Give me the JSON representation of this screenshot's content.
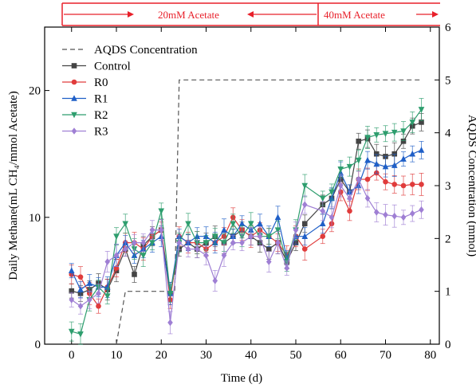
{
  "chart_data": {
    "type": "line",
    "xlabel": "Time (d)",
    "ylabel_left": "Daily Methane(mL CH₄/mmol Acetate)",
    "ylabel_right": "AQDS Concentration (mmol)",
    "xlim": [
      -6,
      82
    ],
    "ylim_left": [
      0,
      25
    ],
    "ylim_right": [
      0,
      6
    ],
    "x_ticks": [
      0,
      10,
      20,
      30,
      40,
      50,
      60,
      70,
      80
    ],
    "y_ticks_left": [
      0,
      10,
      20
    ],
    "y_ticks_right": [
      0,
      1,
      2,
      3,
      4,
      5,
      6
    ],
    "legend_position": "top-left",
    "annotations": [
      {
        "text": "20mM Acetate",
        "range": [
          0,
          58
        ]
      },
      {
        "text": "40mM Acetate",
        "range": [
          58,
          80
        ]
      }
    ],
    "aqds": {
      "name": "AQDS Concentration",
      "color": "#555555",
      "x": [
        10,
        12,
        23,
        24,
        78
      ],
      "y": [
        0,
        1,
        1,
        5,
        5
      ]
    },
    "x": [
      0,
      2,
      4,
      6,
      8,
      10,
      12,
      14,
      16,
      18,
      20,
      22,
      24,
      26,
      28,
      30,
      32,
      34,
      36,
      38,
      40,
      42,
      44,
      46,
      48,
      50,
      52,
      56,
      58,
      60,
      62,
      64,
      66,
      68,
      70,
      72,
      74,
      76,
      78
    ],
    "series": [
      {
        "name": "Control",
        "color": "#444444",
        "marker": "square",
        "values": [
          4.2,
          4.0,
          4.3,
          4.8,
          4.3,
          5.8,
          7.5,
          5.5,
          7.8,
          8.5,
          9.0,
          4.0,
          7.5,
          8.0,
          7.5,
          8.0,
          8.5,
          8.0,
          8.5,
          9.0,
          8.5,
          8.0,
          7.5,
          8.0,
          6.5,
          8.0,
          9.5,
          11.0,
          11.5,
          13.0,
          12.0,
          16.0,
          16.2,
          15.0,
          14.8,
          15.0,
          16.0,
          17.2,
          17.5
        ]
      },
      {
        "name": "R0",
        "color": "#e03c3c",
        "marker": "circle",
        "values": [
          5.5,
          5.3,
          4.0,
          3.0,
          4.5,
          6.0,
          8.0,
          8.0,
          7.5,
          8.5,
          9.0,
          3.5,
          8.5,
          8.0,
          8.0,
          7.5,
          8.0,
          8.5,
          10.0,
          9.0,
          8.5,
          9.0,
          8.5,
          8.0,
          7.0,
          8.5,
          7.5,
          8.5,
          9.5,
          12.0,
          10.5,
          13.0,
          13.0,
          13.5,
          12.8,
          12.6,
          12.5,
          12.6,
          12.6
        ]
      },
      {
        "name": "R1",
        "color": "#1f5fc7",
        "marker": "triangle-up",
        "values": [
          5.8,
          4.3,
          4.8,
          4.5,
          4.5,
          7.0,
          8.0,
          7.0,
          7.5,
          8.0,
          8.5,
          4.0,
          8.5,
          8.0,
          8.5,
          8.5,
          8.0,
          9.0,
          8.5,
          9.5,
          9.0,
          9.5,
          8.5,
          10.0,
          6.8,
          8.5,
          8.5,
          9.5,
          11.5,
          13.5,
          12.0,
          12.5,
          14.5,
          14.2,
          14.0,
          14.1,
          14.6,
          15.0,
          15.3
        ]
      },
      {
        "name": "R2",
        "color": "#2e9e6e",
        "marker": "triangle-down",
        "values": [
          1.0,
          0.8,
          3.5,
          4.5,
          3.8,
          8.5,
          9.5,
          7.5,
          7.0,
          8.0,
          10.5,
          4.0,
          8.0,
          9.5,
          8.0,
          8.0,
          8.5,
          8.0,
          9.5,
          8.5,
          9.5,
          8.5,
          8.5,
          9.0,
          6.5,
          9.0,
          12.5,
          11.5,
          12.0,
          13.8,
          14.0,
          14.5,
          16.3,
          16.5,
          16.6,
          16.7,
          16.8,
          17.5,
          18.5
        ]
      },
      {
        "name": "R3",
        "color": "#9f7fd4",
        "marker": "diamond",
        "values": [
          3.5,
          3.0,
          3.5,
          4.0,
          6.5,
          7.0,
          7.5,
          8.0,
          8.0,
          9.0,
          9.0,
          1.7,
          8.0,
          7.5,
          7.5,
          7.0,
          5.0,
          7.0,
          8.0,
          8.0,
          8.5,
          8.5,
          6.5,
          8.0,
          6.0,
          9.0,
          11.0,
          10.5,
          10.0,
          12.5,
          11.5,
          13.0,
          11.5,
          10.4,
          10.2,
          10.1,
          10.0,
          10.3,
          10.6
        ]
      }
    ]
  }
}
